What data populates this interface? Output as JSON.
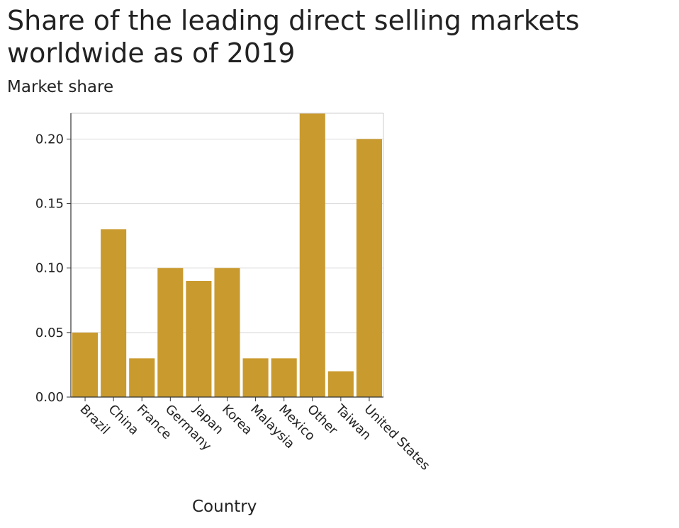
{
  "chart_data": {
    "type": "bar",
    "title": "Share of the leading direct selling markets worldwide as of 2019",
    "xlabel": "Country",
    "ylabel": "Market share",
    "categories": [
      "Brazil",
      "China",
      "France",
      "Germany",
      "Japan",
      "Korea",
      "Malaysia",
      "Mexico",
      "Other",
      "Taiwan",
      "United States"
    ],
    "values": [
      0.05,
      0.13,
      0.03,
      0.1,
      0.09,
      0.1,
      0.03,
      0.03,
      0.22,
      0.02,
      0.2
    ],
    "ylim": [
      0,
      0.22
    ],
    "yticks": [
      "0.00",
      "0.05",
      "0.10",
      "0.15",
      "0.20"
    ],
    "grid": true,
    "bar_color": "#c99a2e"
  }
}
